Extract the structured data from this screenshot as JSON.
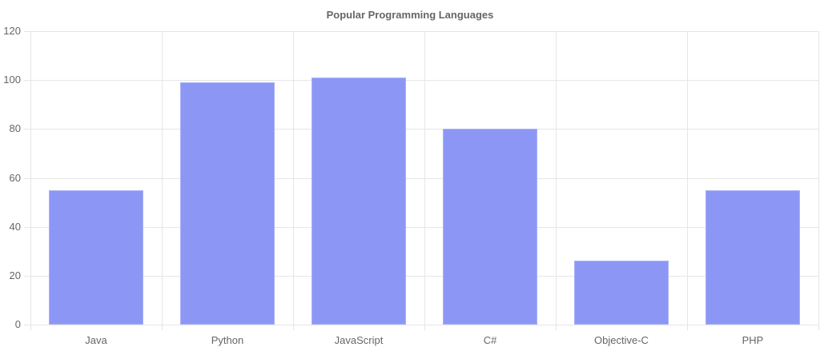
{
  "title": "Popular Programming Languages",
  "chart_data": {
    "type": "bar",
    "title": "Popular Programming Languages",
    "categories": [
      "Java",
      "Python",
      "JavaScript",
      "C#",
      "Objective-C",
      "PHP"
    ],
    "values": [
      55,
      99,
      101,
      80,
      26,
      55
    ],
    "xlabel": "",
    "ylabel": "",
    "ylim": [
      0,
      120
    ],
    "yticks": [
      0,
      20,
      40,
      60,
      80,
      100,
      120
    ],
    "grid": true,
    "legend": "none",
    "bar_color": "#8c97f5"
  }
}
